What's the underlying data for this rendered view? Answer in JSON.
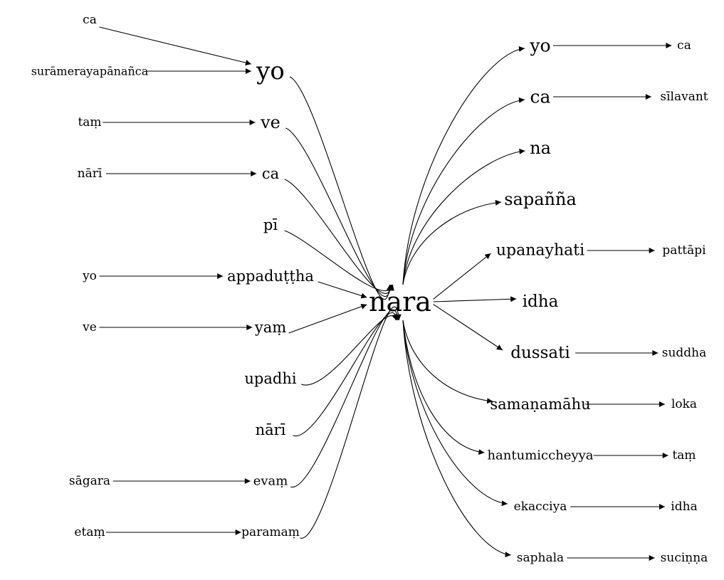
{
  "graph": {
    "center": "nara",
    "nodes": [
      {
        "id": "ca_1",
        "label": "ca"
      },
      {
        "id": "suramerayapananca",
        "label": "surāmerayapānañca"
      },
      {
        "id": "tam_1",
        "label": "taṃ"
      },
      {
        "id": "nari_1",
        "label": "nārī"
      },
      {
        "id": "yo_2",
        "label": "yo"
      },
      {
        "id": "ve_2",
        "label": "ve"
      },
      {
        "id": "sagara",
        "label": "sāgara"
      },
      {
        "id": "etam",
        "label": "etaṃ"
      },
      {
        "id": "yo_l",
        "label": "yo"
      },
      {
        "id": "ve_l",
        "label": "ve"
      },
      {
        "id": "ca_l",
        "label": "ca"
      },
      {
        "id": "pi",
        "label": "pī"
      },
      {
        "id": "appaduttha",
        "label": "appaduṭṭha"
      },
      {
        "id": "yam",
        "label": "yaṃ"
      },
      {
        "id": "upadhi",
        "label": "upadhi"
      },
      {
        "id": "nari_l",
        "label": "nārī"
      },
      {
        "id": "evam",
        "label": "evaṃ"
      },
      {
        "id": "paramam",
        "label": "paramaṃ"
      },
      {
        "id": "nara",
        "label": "nara"
      },
      {
        "id": "yo_r",
        "label": "yo"
      },
      {
        "id": "ca_r",
        "label": "ca"
      },
      {
        "id": "na_r",
        "label": "na"
      },
      {
        "id": "sapanna",
        "label": "sapañña"
      },
      {
        "id": "upanayhati",
        "label": "upanayhati"
      },
      {
        "id": "idha_r",
        "label": "idha"
      },
      {
        "id": "dussati",
        "label": "dussati"
      },
      {
        "id": "samanamahu",
        "label": "samaṇamāhu"
      },
      {
        "id": "hantumiccheyya",
        "label": "hantumiccheyya"
      },
      {
        "id": "ekacciya",
        "label": "ekacciya"
      },
      {
        "id": "saphala",
        "label": "saphala"
      },
      {
        "id": "ca_rr",
        "label": "ca"
      },
      {
        "id": "silavant",
        "label": "sīlavant"
      },
      {
        "id": "pattapi",
        "label": "pattāpi"
      },
      {
        "id": "suddha",
        "label": "suddha"
      },
      {
        "id": "loka",
        "label": "loka"
      },
      {
        "id": "tam_r",
        "label": "taṃ"
      },
      {
        "id": "idha_rr",
        "label": "idha"
      },
      {
        "id": "sucinna",
        "label": "suciṇṇa"
      }
    ],
    "edges": [
      {
        "from": "ca_1",
        "to": "yo_l"
      },
      {
        "from": "suramerayapananca",
        "to": "yo_l"
      },
      {
        "from": "tam_1",
        "to": "ve_l"
      },
      {
        "from": "nari_1",
        "to": "ca_l"
      },
      {
        "from": "yo_2",
        "to": "appaduttha"
      },
      {
        "from": "ve_2",
        "to": "yam"
      },
      {
        "from": "sagara",
        "to": "evam"
      },
      {
        "from": "etam",
        "to": "paramam"
      },
      {
        "from": "yo_l",
        "to": "nara"
      },
      {
        "from": "ve_l",
        "to": "nara"
      },
      {
        "from": "ca_l",
        "to": "nara"
      },
      {
        "from": "pi",
        "to": "nara"
      },
      {
        "from": "appaduttha",
        "to": "nara"
      },
      {
        "from": "yam",
        "to": "nara"
      },
      {
        "from": "upadhi",
        "to": "nara"
      },
      {
        "from": "nari_l",
        "to": "nara"
      },
      {
        "from": "evam",
        "to": "nara"
      },
      {
        "from": "paramam",
        "to": "nara"
      },
      {
        "from": "nara",
        "to": "yo_r"
      },
      {
        "from": "nara",
        "to": "ca_r"
      },
      {
        "from": "nara",
        "to": "na_r"
      },
      {
        "from": "nara",
        "to": "sapanna"
      },
      {
        "from": "nara",
        "to": "upanayhati"
      },
      {
        "from": "nara",
        "to": "idha_r"
      },
      {
        "from": "nara",
        "to": "dussati"
      },
      {
        "from": "nara",
        "to": "samanamahu"
      },
      {
        "from": "nara",
        "to": "hantumiccheyya"
      },
      {
        "from": "nara",
        "to": "ekacciya"
      },
      {
        "from": "nara",
        "to": "saphala"
      },
      {
        "from": "yo_r",
        "to": "ca_rr"
      },
      {
        "from": "ca_r",
        "to": "silavant"
      },
      {
        "from": "upanayhati",
        "to": "pattapi"
      },
      {
        "from": "dussati",
        "to": "suddha"
      },
      {
        "from": "samanamahu",
        "to": "loka"
      },
      {
        "from": "hantumiccheyya",
        "to": "tam_r"
      },
      {
        "from": "ekacciya",
        "to": "idha_rr"
      },
      {
        "from": "saphala",
        "to": "sucinna"
      }
    ]
  }
}
